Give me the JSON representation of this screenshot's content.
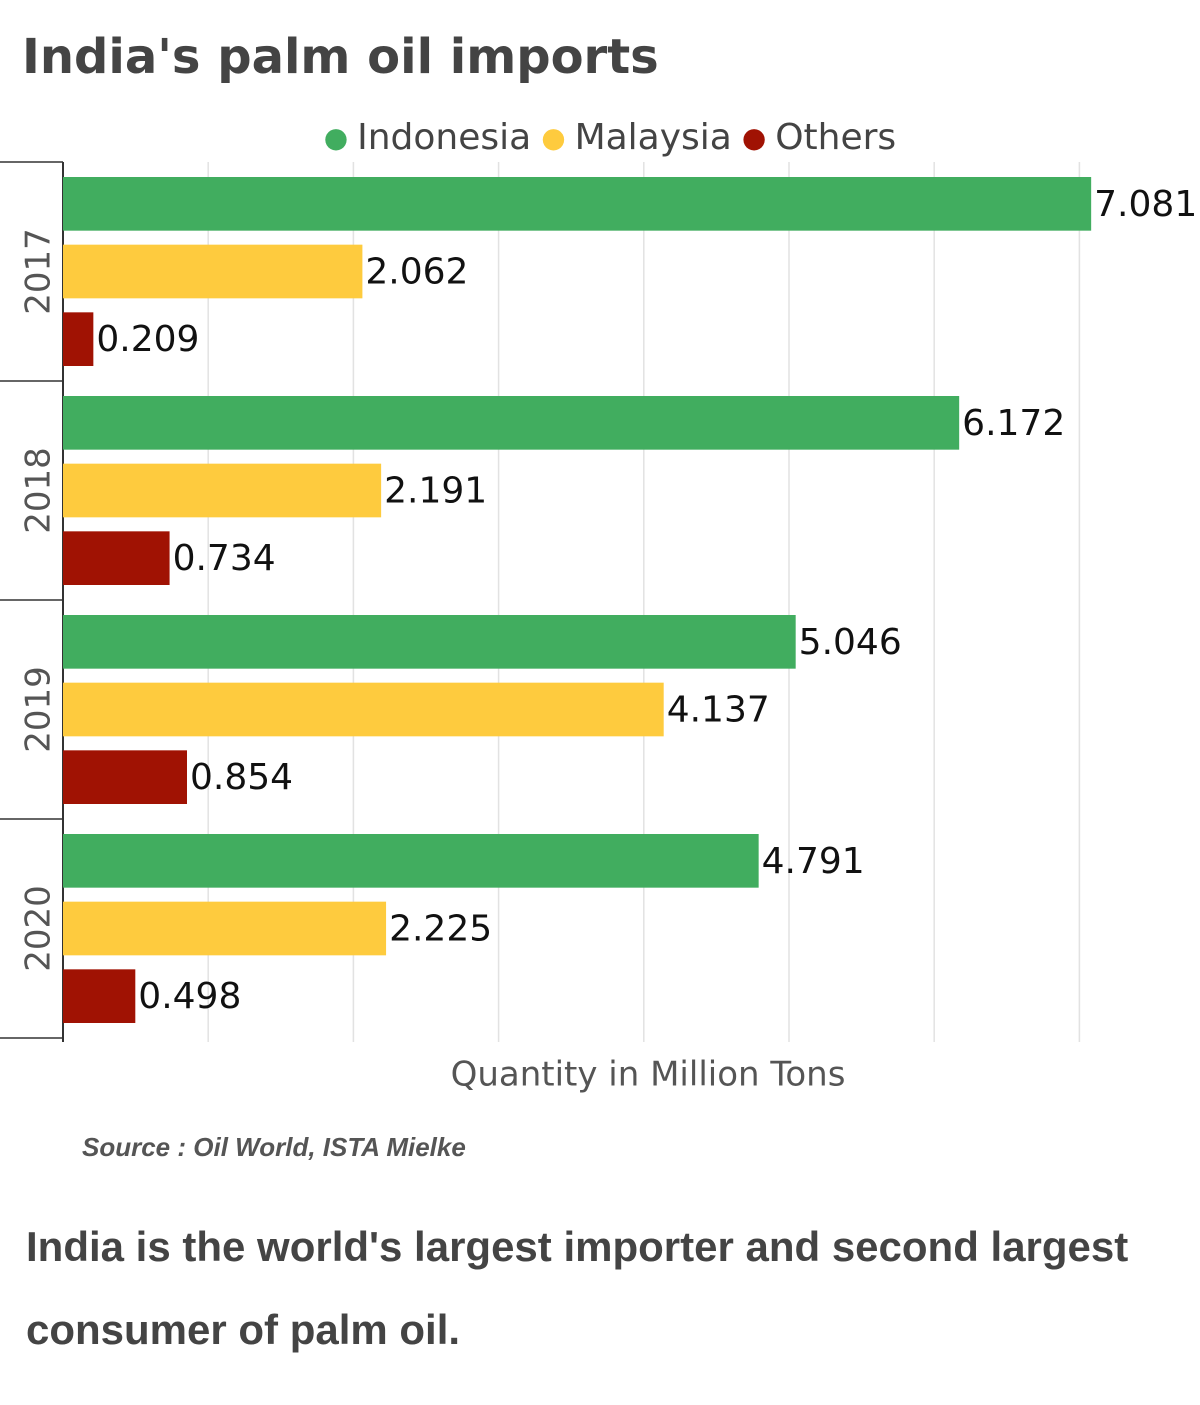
{
  "chart_data": {
    "type": "hbar",
    "title": "India's palm oil imports",
    "categories": [
      "2017",
      "2018",
      "2019",
      "2020"
    ],
    "series": [
      {
        "name": "Indonesia",
        "color": "#41ad5f",
        "values": [
          7.081,
          6.172,
          5.046,
          4.791
        ]
      },
      {
        "name": "Malaysia",
        "color": "#fecb3e",
        "values": [
          2.062,
          2.191,
          4.137,
          2.225
        ]
      },
      {
        "name": "Others",
        "color": "#a01203",
        "values": [
          0.209,
          0.734,
          0.854,
          0.498
        ]
      }
    ],
    "xlabel": "Quantity in Million Tons",
    "xlim": [
      0,
      7.5
    ],
    "xticks": [
      0,
      1,
      2,
      3,
      4,
      5,
      6,
      7
    ],
    "grid": true,
    "source": "Source : Oil World, ISTA Mielke",
    "footer": "India is the world's largest importer and second largest consumer of palm oil."
  }
}
